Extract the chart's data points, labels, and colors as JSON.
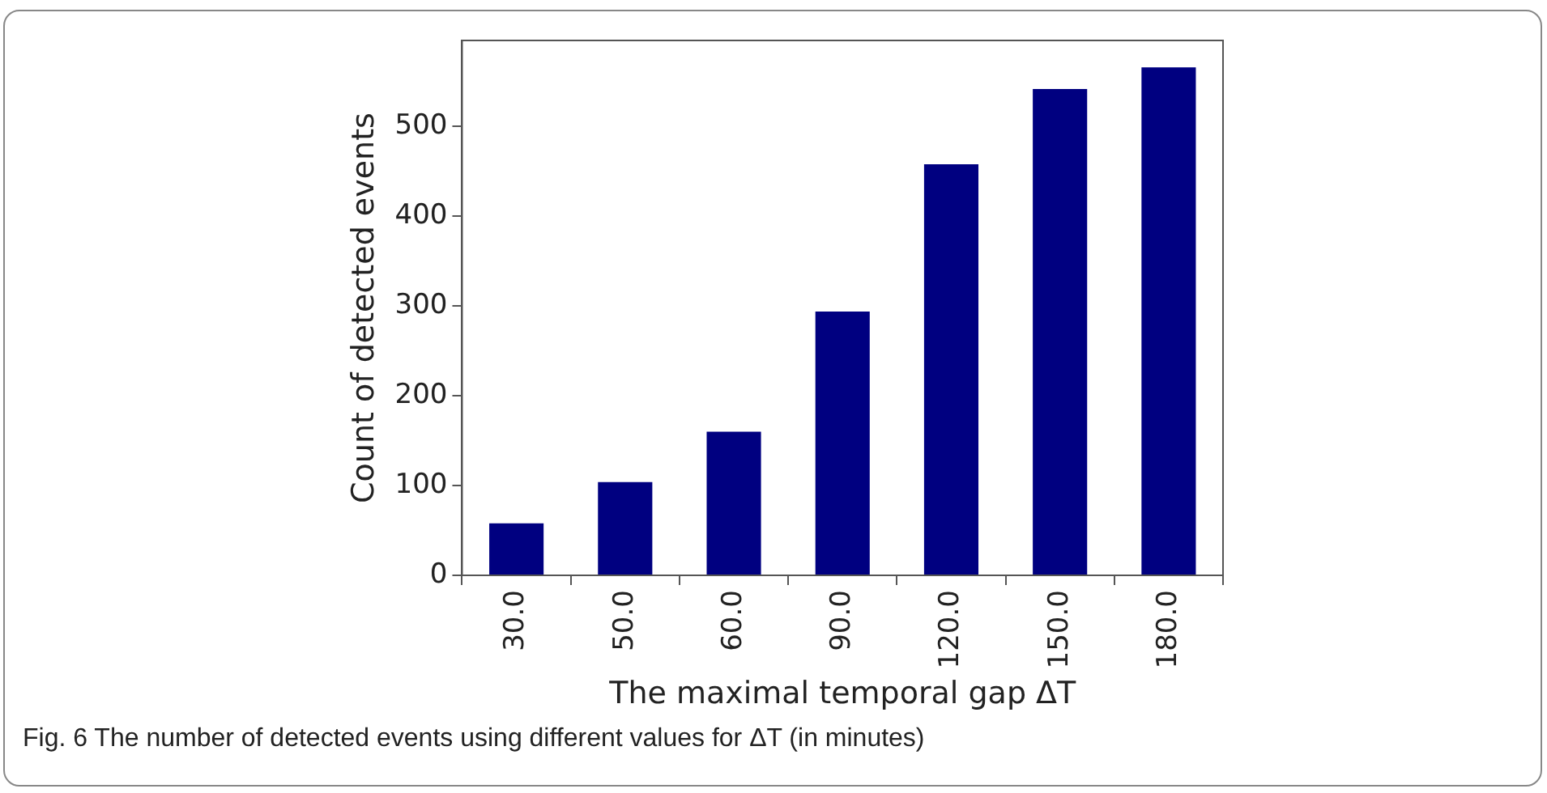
{
  "chart_data": {
    "type": "bar",
    "categories": [
      "30.0",
      "50.0",
      "60.0",
      "90.0",
      "120.0",
      "150.0",
      "180.0"
    ],
    "values": [
      58,
      104,
      160,
      294,
      458,
      542,
      566
    ],
    "color": "#000080",
    "ylim": [
      0,
      596
    ],
    "yticks": [
      0,
      100,
      200,
      300,
      400,
      500
    ],
    "ylabel": "Count of detected events",
    "xlabel": "The maximal temporal gap ΔT",
    "grid": false,
    "legend": false,
    "annotations": [
      "Fig. 6  The number of detected events using different values for ΔT (in minutes)"
    ]
  }
}
